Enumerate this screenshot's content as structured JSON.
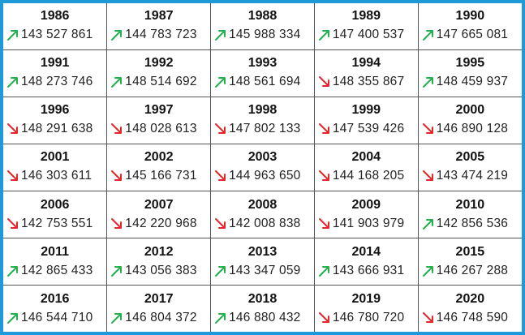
{
  "table": {
    "rows": [
      [
        {
          "year": "1986",
          "value": "143 527 861",
          "trend": "up"
        },
        {
          "year": "1987",
          "value": "144 783 723",
          "trend": "up"
        },
        {
          "year": "1988",
          "value": "145 988 334",
          "trend": "up"
        },
        {
          "year": "1989",
          "value": "147 400 537",
          "trend": "up"
        },
        {
          "year": "1990",
          "value": "147 665 081",
          "trend": "up"
        }
      ],
      [
        {
          "year": "1991",
          "value": "148 273 746",
          "trend": "up"
        },
        {
          "year": "1992",
          "value": "148 514 692",
          "trend": "up"
        },
        {
          "year": "1993",
          "value": "148 561 694",
          "trend": "up"
        },
        {
          "year": "1994",
          "value": "148 355 867",
          "trend": "down"
        },
        {
          "year": "1995",
          "value": "148 459 937",
          "trend": "up"
        }
      ],
      [
        {
          "year": "1996",
          "value": "148 291 638",
          "trend": "down"
        },
        {
          "year": "1997",
          "value": "148 028 613",
          "trend": "down"
        },
        {
          "year": "1998",
          "value": "147 802 133",
          "trend": "down"
        },
        {
          "year": "1999",
          "value": "147 539 426",
          "trend": "down"
        },
        {
          "year": "2000",
          "value": "146 890 128",
          "trend": "down"
        }
      ],
      [
        {
          "year": "2001",
          "value": "146 303 611",
          "trend": "down"
        },
        {
          "year": "2002",
          "value": "145 166 731",
          "trend": "down"
        },
        {
          "year": "2003",
          "value": "144 963 650",
          "trend": "down"
        },
        {
          "year": "2004",
          "value": "144 168 205",
          "trend": "down"
        },
        {
          "year": "2005",
          "value": "143 474 219",
          "trend": "down"
        }
      ],
      [
        {
          "year": "2006",
          "value": "142 753 551",
          "trend": "down"
        },
        {
          "year": "2007",
          "value": "142 220 968",
          "trend": "down"
        },
        {
          "year": "2008",
          "value": "142 008 838",
          "trend": "down"
        },
        {
          "year": "2009",
          "value": "141 903 979",
          "trend": "down"
        },
        {
          "year": "2010",
          "value": "142 856 536",
          "trend": "up"
        }
      ],
      [
        {
          "year": "2011",
          "value": "142 865 433",
          "trend": "up"
        },
        {
          "year": "2012",
          "value": "143 056 383",
          "trend": "up"
        },
        {
          "year": "2013",
          "value": "143 347 059",
          "trend": "up"
        },
        {
          "year": "2014",
          "value": "143 666 931",
          "trend": "up"
        },
        {
          "year": "2015",
          "value": "146 267 288",
          "trend": "up"
        }
      ],
      [
        {
          "year": "2016",
          "value": "146 544 710",
          "trend": "up"
        },
        {
          "year": "2017",
          "value": "146 804 372",
          "trend": "up"
        },
        {
          "year": "2018",
          "value": "146 880 432",
          "trend": "up"
        },
        {
          "year": "2019",
          "value": "146 780 720",
          "trend": "down"
        },
        {
          "year": "2020",
          "value": "146 748 590",
          "trend": "down"
        }
      ]
    ]
  }
}
